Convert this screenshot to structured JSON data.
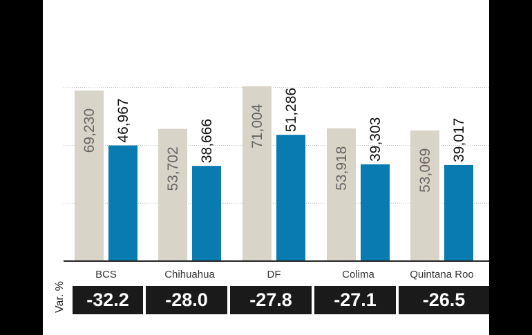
{
  "chart_data": {
    "type": "bar",
    "categories": [
      "BCS",
      "Chihuahua",
      "DF",
      "Colima",
      "Quintana Roo"
    ],
    "series": [
      {
        "values": [
          69230,
          53702,
          71004,
          53918,
          53069
        ],
        "value_labels": [
          "69,230",
          "53,702",
          "71,004",
          "53,918",
          "53,069"
        ],
        "color": "#d8d4c8",
        "label_color": "#666666"
      },
      {
        "values": [
          46967,
          38666,
          51286,
          39303,
          39017
        ],
        "value_labels": [
          "46,967",
          "38,666",
          "51,286",
          "39,303",
          "39,017"
        ],
        "color": "#0a7bb0",
        "label_color": "#111111"
      }
    ],
    "ylim": [
      0,
      72000
    ],
    "grid": true,
    "var_label": "Var. %",
    "var_values": [
      "-32.2",
      "-28.0",
      "-27.8",
      "-27.1",
      "-26.5"
    ]
  }
}
